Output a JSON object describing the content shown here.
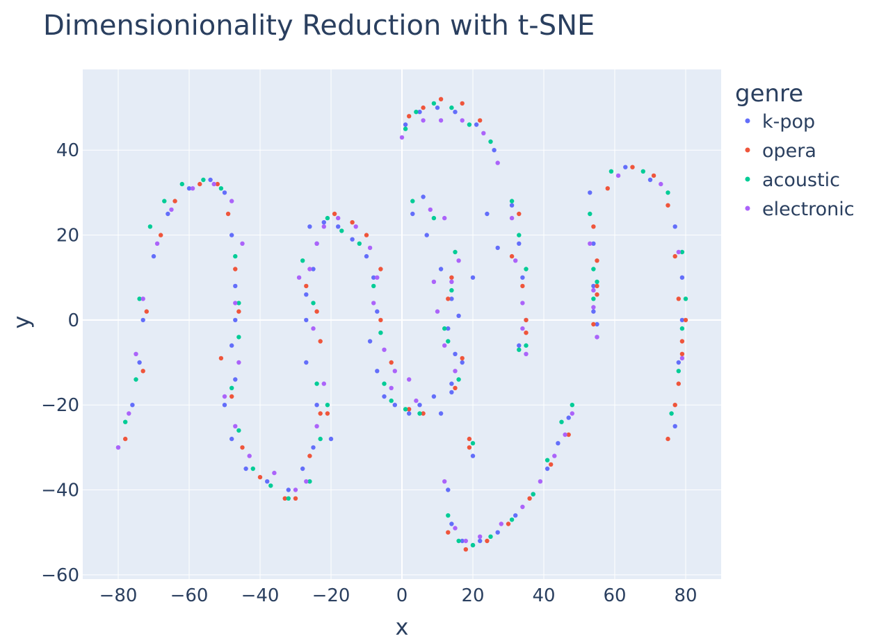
{
  "chart_data": {
    "type": "scatter",
    "title": "Dimensionionality Reduction with t-SNE",
    "xlabel": "x",
    "ylabel": "y",
    "xlim": [
      -90,
      90
    ],
    "ylim": [
      -61,
      59
    ],
    "x_ticks": [
      -80,
      -60,
      -40,
      -20,
      0,
      20,
      40,
      60,
      80
    ],
    "y_ticks": [
      -60,
      -40,
      -20,
      0,
      20,
      40
    ],
    "x_tick_labels": [
      "−80",
      "−60",
      "−40",
      "−20",
      "0",
      "20",
      "40",
      "60",
      "80"
    ],
    "y_tick_labels": [
      "−60",
      "−40",
      "−20",
      "0",
      "20",
      "40"
    ],
    "grid": true,
    "legend": {
      "title": "genre",
      "placement": "right"
    },
    "colors": {
      "k-pop": "#636efa",
      "opera": "#ef553b",
      "acoustic": "#00cc96",
      "electronic": "#ab63fa",
      "plot_bg": "#e5ecf6",
      "grid": "#ffffff",
      "text": "#2a3f5f"
    },
    "series": [
      {
        "name": "k-pop",
        "x": [
          -80,
          -76,
          -74,
          -73,
          -70,
          -66,
          -60,
          -54,
          -50,
          -48,
          -47,
          -47,
          -48,
          -47,
          -50,
          -48,
          -44,
          -38,
          -32,
          -28,
          -25,
          -24,
          -20,
          -27,
          -27,
          -25,
          -24,
          -27,
          -26,
          -22,
          -18,
          -14,
          -10,
          -8,
          -7,
          -9,
          -7,
          -5,
          -2,
          2,
          5,
          9,
          14,
          17,
          20,
          24,
          27,
          6,
          3,
          7,
          11,
          14,
          13,
          15,
          14,
          11,
          16,
          31,
          33,
          34,
          35,
          33,
          53,
          54,
          54,
          55,
          55,
          54,
          63,
          70,
          77,
          79,
          79,
          78,
          77,
          13,
          14,
          17,
          20,
          22,
          27,
          32,
          37,
          41,
          44,
          47,
          20,
          1,
          5,
          10,
          15,
          21,
          26
        ],
        "y": [
          -30,
          -20,
          -10,
          0,
          15,
          25,
          31,
          33,
          30,
          20,
          8,
          0,
          -6,
          -14,
          -20,
          -28,
          -35,
          -38,
          -40,
          -35,
          -30,
          -20,
          -28,
          -10,
          0,
          12,
          18,
          6,
          22,
          23,
          22,
          19,
          15,
          10,
          2,
          -5,
          -12,
          -18,
          -20,
          -22,
          -20,
          -18,
          -15,
          -10,
          10,
          25,
          17,
          29,
          25,
          20,
          12,
          5,
          -2,
          -8,
          -17,
          -22,
          1,
          27,
          18,
          10,
          0,
          -6,
          30,
          18,
          8,
          -1,
          -4,
          2,
          36,
          33,
          22,
          10,
          0,
          -10,
          -25,
          -40,
          -48,
          -52,
          -53,
          -52,
          -50,
          -46,
          -41,
          -35,
          -29,
          -23,
          -32,
          46,
          49,
          50,
          49,
          46,
          40
        ]
      },
      {
        "name": "opera",
        "x": [
          -78,
          -73,
          -72,
          -68,
          -64,
          -57,
          -52,
          -49,
          -47,
          -46,
          -51,
          -48,
          -45,
          -40,
          -33,
          -30,
          -26,
          -23,
          -21,
          -27,
          -24,
          -23,
          -19,
          -14,
          -10,
          -6,
          -6,
          -3,
          2,
          6,
          15,
          13,
          14,
          17,
          19,
          31,
          34,
          35,
          35,
          33,
          54,
          55,
          55,
          54,
          55,
          58,
          65,
          71,
          75,
          77,
          78,
          79,
          80,
          79,
          78,
          77,
          75,
          13,
          18,
          24,
          30,
          36,
          42,
          47,
          19,
          2,
          6,
          11,
          17,
          22
        ],
        "y": [
          -28,
          -12,
          2,
          20,
          28,
          32,
          32,
          25,
          12,
          2,
          -9,
          -18,
          -30,
          -37,
          -42,
          -42,
          -32,
          -22,
          -22,
          8,
          2,
          -5,
          25,
          23,
          20,
          12,
          0,
          -10,
          -21,
          -22,
          -16,
          5,
          10,
          -9,
          -28,
          15,
          8,
          0,
          -3,
          25,
          22,
          14,
          8,
          -1,
          6,
          31,
          36,
          34,
          27,
          15,
          5,
          -5,
          0,
          -8,
          -15,
          -20,
          -28,
          -50,
          -54,
          -52,
          -48,
          -42,
          -34,
          -27,
          -30,
          48,
          50,
          52,
          51,
          47
        ],
        "ids": []
      },
      {
        "name": "acoustic",
        "x": [
          -78,
          -75,
          -74,
          -71,
          -67,
          -62,
          -56,
          -51,
          -47,
          -46,
          -46,
          -48,
          -46,
          -42,
          -37,
          -32,
          -26,
          -23,
          -21,
          -28,
          -25,
          -24,
          -21,
          -17,
          -12,
          -8,
          -6,
          -5,
          -3,
          1,
          5,
          3,
          9,
          15,
          14,
          13,
          16,
          12,
          31,
          33,
          35,
          35,
          33,
          53,
          54,
          54,
          55,
          59,
          68,
          75,
          79,
          80,
          79,
          78,
          76,
          13,
          16,
          20,
          25,
          31,
          37,
          41,
          45,
          48,
          20,
          1,
          4,
          9,
          14,
          19,
          25
        ],
        "y": [
          -24,
          -14,
          5,
          22,
          28,
          32,
          33,
          31,
          15,
          4,
          -4,
          -16,
          -26,
          -35,
          -39,
          -42,
          -38,
          -28,
          -20,
          14,
          4,
          -15,
          24,
          21,
          18,
          8,
          -3,
          -15,
          -19,
          -21,
          -22,
          28,
          24,
          16,
          7,
          -5,
          -14,
          -2,
          28,
          20,
          12,
          -6,
          -7,
          25,
          12,
          5,
          9,
          35,
          35,
          30,
          16,
          5,
          -2,
          -12,
          -22,
          -46,
          -52,
          -53,
          -51,
          -47,
          -41,
          -33,
          -24,
          -20,
          -29,
          45,
          49,
          51,
          50,
          46,
          42
        ]
      },
      {
        "name": "electronic",
        "x": [
          -80,
          -77,
          -75,
          -73,
          -69,
          -65,
          -59,
          -53,
          -48,
          -45,
          -47,
          -46,
          -50,
          -47,
          -43,
          -36,
          -30,
          -27,
          -24,
          -22,
          -29,
          -25,
          -26,
          -24,
          -22,
          -18,
          -13,
          -9,
          -7,
          -8,
          -5,
          -2,
          -3,
          2,
          4,
          8,
          12,
          16,
          14,
          10,
          12,
          15,
          9,
          31,
          32,
          34,
          34,
          35,
          53,
          54,
          55,
          54,
          61,
          73,
          78,
          79,
          12,
          15,
          18,
          22,
          28,
          34,
          39,
          43,
          46,
          48,
          0,
          6,
          11,
          17,
          23,
          27
        ],
        "y": [
          -30,
          -22,
          -8,
          5,
          18,
          26,
          31,
          32,
          28,
          18,
          4,
          -10,
          -18,
          -25,
          -32,
          -36,
          -40,
          -38,
          -25,
          -15,
          10,
          -2,
          12,
          18,
          22,
          24,
          22,
          17,
          10,
          4,
          -7,
          -12,
          -16,
          -14,
          -19,
          26,
          24,
          14,
          9,
          2,
          -6,
          -12,
          9,
          24,
          14,
          4,
          -2,
          -8,
          18,
          3,
          -4,
          7,
          34,
          32,
          16,
          -9,
          -38,
          -49,
          -52,
          -51,
          -48,
          -44,
          -38,
          -32,
          -27,
          -22,
          43,
          47,
          47,
          47,
          44,
          37
        ]
      }
    ]
  }
}
